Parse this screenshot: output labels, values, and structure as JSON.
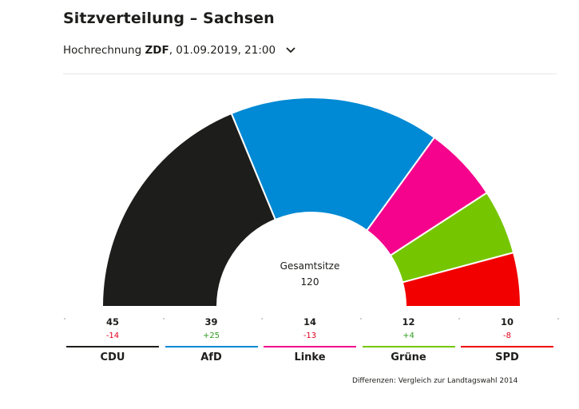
{
  "header": {
    "title": "Sitzverteilung – Sachsen",
    "subtitle_prefix": "Hochrechnung ",
    "subtitle_source": "ZDF",
    "subtitle_suffix": ", 01.09.2019, 21:00"
  },
  "chart_data": {
    "type": "pie",
    "variant": "half-donut parliament seat distribution",
    "title": "Sitzverteilung – Sachsen",
    "center_label": "Gesamtsitze",
    "total_seats": "120",
    "parties": [
      {
        "name": "CDU",
        "seats": 45,
        "seats_label": "45",
        "diff": "-14",
        "color": "#1d1d1b",
        "diff_color": "#e3001b"
      },
      {
        "name": "AfD",
        "seats": 39,
        "seats_label": "39",
        "diff": "+25",
        "color": "#0089d4",
        "diff_color": "#2e9e1f"
      },
      {
        "name": "Linke",
        "seats": 14,
        "seats_label": "14",
        "diff": "-13",
        "color": "#f5038c",
        "diff_color": "#e3001b"
      },
      {
        "name": "Grüne",
        "seats": 12,
        "seats_label": "12",
        "diff": "+4",
        "color": "#75c600",
        "diff_color": "#2e9e1f"
      },
      {
        "name": "SPD",
        "seats": 10,
        "seats_label": "10",
        "diff": "-8",
        "color": "#f20000",
        "diff_color": "#e3001b"
      }
    ]
  },
  "footnote": "Differenzen: Vergleich zur Landtagswahl 2014"
}
